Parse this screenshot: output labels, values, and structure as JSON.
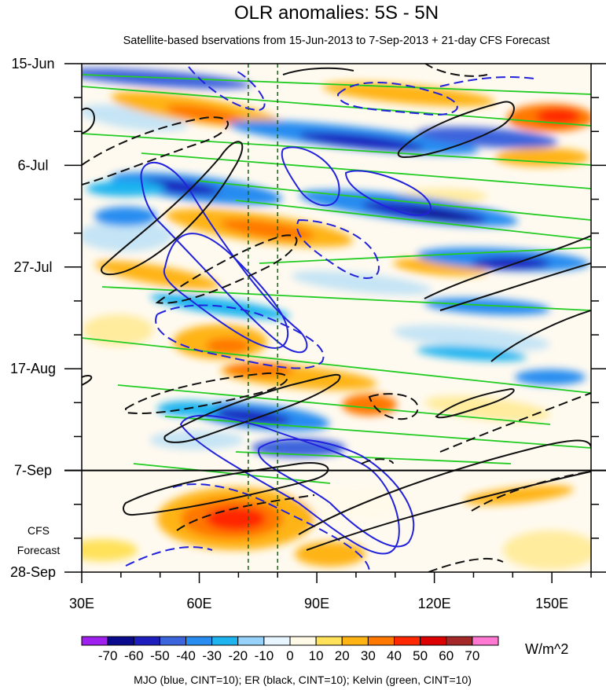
{
  "chart_data": {
    "type": "heatmap",
    "title": "OLR anomalies: 5S - 5N",
    "subtitle": "Satellite-based bservations from 15-Jun-2013 to 7-Sep-2013 + 21-day CFS Forecast",
    "xlabel": "",
    "ylabel": "",
    "x_ticks": [
      "30E",
      "60E",
      "90E",
      "120E",
      "150E"
    ],
    "x_tick_values": [
      30,
      60,
      90,
      120,
      150
    ],
    "xlim": [
      30,
      160
    ],
    "y_ticks": [
      "15-Jun",
      "6-Jul",
      "27-Jul",
      "17-Aug",
      "7-Sep",
      "28-Sep"
    ],
    "y_tick_values": [
      0,
      21,
      42,
      63,
      84,
      105
    ],
    "ylim": [
      0,
      105
    ],
    "observation_end_day": 84,
    "forecast_label": [
      "CFS",
      "Forecast"
    ],
    "reference_longitudes": [
      72.5,
      80
    ],
    "colorbar": {
      "levels": [
        -70,
        -60,
        -50,
        -40,
        -30,
        -20,
        -10,
        0,
        10,
        20,
        30,
        40,
        50,
        60,
        70
      ],
      "labels": [
        "-70",
        "-60",
        "-50",
        "-40",
        "-30",
        "-20",
        "-10",
        "0",
        "10",
        "20",
        "30",
        "40",
        "50",
        "60",
        "70"
      ],
      "colors": [
        "#a020f0",
        "#0a0a8c",
        "#1e1ebe",
        "#3c64dc",
        "#288cf0",
        "#1eb4f0",
        "#96d2fa",
        "#e6f5ff",
        "#fffae6",
        "#ffe15a",
        "#ffb414",
        "#ff7800",
        "#ff2800",
        "#dc0000",
        "#a52828",
        "#ff78d2"
      ],
      "units": "W/m^2"
    },
    "contours": [
      {
        "name": "MJO",
        "color": "blue",
        "cint": 10
      },
      {
        "name": "ER",
        "color": "black",
        "cint": 10
      },
      {
        "name": "Kelvin",
        "color": "green",
        "cint": 10
      }
    ],
    "caption": "MJO (blue, CINT=10); ER (black, CINT=10); Kelvin (green, CINT=10)",
    "colors": {
      "mjo": "#2222dd",
      "er": "#111111",
      "kelvin": "#22cc22",
      "ref_line": "#1a6e1a"
    }
  }
}
